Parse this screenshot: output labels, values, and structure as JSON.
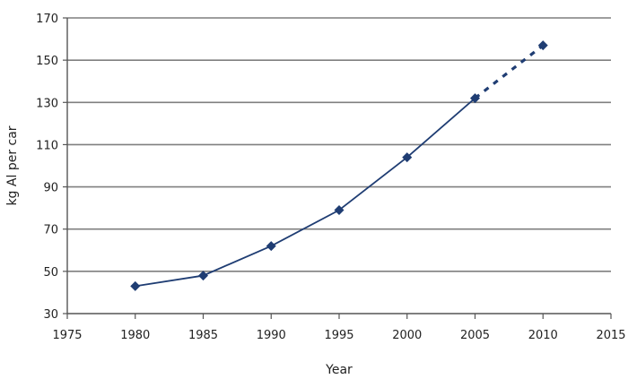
{
  "chart_data": {
    "type": "line",
    "title": "",
    "xlabel": "Year",
    "ylabel": "kg Al per car",
    "xlim": [
      1975,
      2015
    ],
    "ylim": [
      30,
      170
    ],
    "x_ticks": [
      1975,
      1980,
      1985,
      1990,
      1995,
      2000,
      2005,
      2010,
      2015
    ],
    "y_ticks": [
      30,
      50,
      70,
      90,
      110,
      130,
      150,
      170
    ],
    "grid": "horizontal",
    "series": [
      {
        "x": [
          1980,
          1985,
          1990,
          1995,
          2000,
          2005
        ],
        "y": [
          43,
          48,
          62,
          79,
          104,
          132
        ],
        "line_style": "solid",
        "marker": "diamond",
        "color": "#1f3d73"
      },
      {
        "x": [
          2005,
          2010
        ],
        "y": [
          132,
          157
        ],
        "line_style": "dotted",
        "marker": "diamond",
        "color": "#1f3d73"
      }
    ]
  }
}
